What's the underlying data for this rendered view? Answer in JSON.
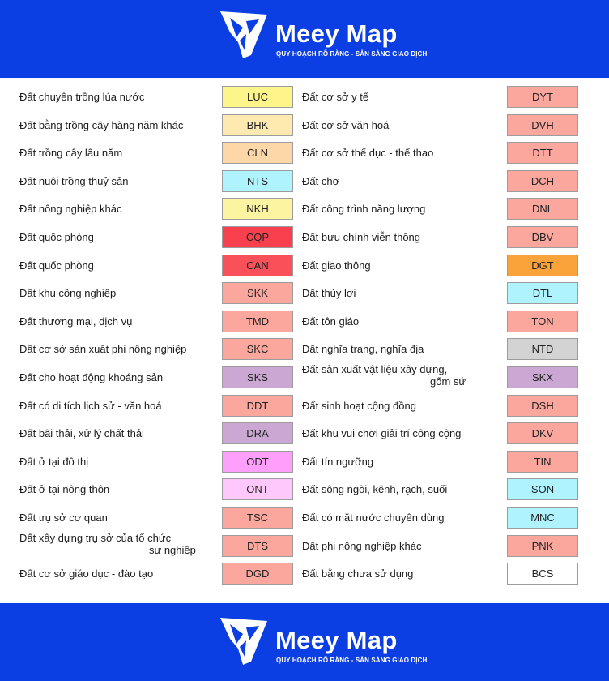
{
  "brand": {
    "name": "Meey Map",
    "tagline": "QUY HOẠCH RÕ RÀNG - SẴN SÀNG GIAO DỊCH"
  },
  "legend": {
    "left": [
      {
        "label": "Đất chuyên trồng lúa nước",
        "code": "LUC",
        "color": "#fdf58a"
      },
      {
        "label": "Đất bằng trồng cây hàng năm khác",
        "code": "BHK",
        "color": "#feeab0"
      },
      {
        "label": "Đất trồng cây lâu năm",
        "code": "CLN",
        "color": "#fdd7a8"
      },
      {
        "label": "Đất nuôi trồng thuỷ sản",
        "code": "NTS",
        "color": "#aef3fd"
      },
      {
        "label": "Đất nông nghiệp khác",
        "code": "NKH",
        "color": "#fcf4a0"
      },
      {
        "label": "Đất quốc phòng",
        "code": "CQP",
        "color": "#f9404f"
      },
      {
        "label": "Đất quốc phòng",
        "code": "CAN",
        "color": "#f9505a"
      },
      {
        "label": "Đất khu công nghiệp",
        "code": "SKK",
        "color": "#fba79e"
      },
      {
        "label": "Đất thương mại, dịch vụ",
        "code": "TMD",
        "color": "#fba79e"
      },
      {
        "label": "Đất cơ sở sản xuất phi nông nghiệp",
        "code": "SKC",
        "color": "#fba79e"
      },
      {
        "label": "Đất cho hoạt động khoáng sản",
        "code": "SKS",
        "color": "#cba8d4"
      },
      {
        "label": "Đất có di tích lịch sử - văn hoá",
        "code": "DDT",
        "color": "#fba79e"
      },
      {
        "label": "Đất bãi thải, xử lý chất thải",
        "code": "DRA",
        "color": "#cba8d4"
      },
      {
        "label": "Đất ở tại đô thị",
        "code": "ODT",
        "color": "#fe9ffb"
      },
      {
        "label": "Đất ở tại nông thôn",
        "code": "ONT",
        "color": "#fec8fc"
      },
      {
        "label": "Đất trụ sở cơ quan",
        "code": "TSC",
        "color": "#fba79e"
      },
      {
        "label": "Đất xây dựng trụ sở của tổ chức",
        "label2": "sự nghiệp",
        "code": "DTS",
        "color": "#fba79e"
      },
      {
        "label": "Đất cơ sở giáo dục - đào tạo",
        "code": "DGD",
        "color": "#fba79e"
      }
    ],
    "right": [
      {
        "label": "Đất cơ sở y tế",
        "code": "DYT",
        "color": "#fba79e"
      },
      {
        "label": "Đất cơ sở văn hoá",
        "code": "DVH",
        "color": "#fba79e"
      },
      {
        "label": "Đất cơ sở thể dục - thể thao",
        "code": "DTT",
        "color": "#fba79e"
      },
      {
        "label": "Đất chợ",
        "code": "DCH",
        "color": "#fba79e"
      },
      {
        "label": "Đất công trình năng lượng",
        "code": "DNL",
        "color": "#fba79e"
      },
      {
        "label": "Đất bưu chính viễn thông",
        "code": "DBV",
        "color": "#fba79e"
      },
      {
        "label": "Đất giao thông",
        "code": "DGT",
        "color": "#fba33b"
      },
      {
        "label": "Đất thủy lợi",
        "code": "DTL",
        "color": "#aef3fd"
      },
      {
        "label": "Đất tôn giáo",
        "code": "TON",
        "color": "#fba79e"
      },
      {
        "label": "Đất nghĩa trang, nghĩa địa",
        "code": "NTD",
        "color": "#d3d3d3"
      },
      {
        "label": "Đất sản xuất vật liệu xây dựng,",
        "label2": "gốm sứ",
        "code": "SKX",
        "color": "#cba8d4"
      },
      {
        "label": "Đất sinh hoạt cộng đồng",
        "code": "DSH",
        "color": "#fba79e"
      },
      {
        "label": "Đất khu vui chơi giải trí công cộng",
        "code": "DKV",
        "color": "#fba79e"
      },
      {
        "label": "Đất tín ngưỡng",
        "code": "TIN",
        "color": "#fba79e"
      },
      {
        "label": "Đất sông ngòi, kênh, rạch, suối",
        "code": "SON",
        "color": "#aef3fd"
      },
      {
        "label": "Đất có mặt nước chuyên dùng",
        "code": "MNC",
        "color": "#aef3fd"
      },
      {
        "label": "Đất phi nông nghiệp khác",
        "code": "PNK",
        "color": "#fba79e"
      },
      {
        "label": "Đất bằng chưa sử dụng",
        "code": "BCS",
        "color": "#ffffff"
      }
    ]
  }
}
